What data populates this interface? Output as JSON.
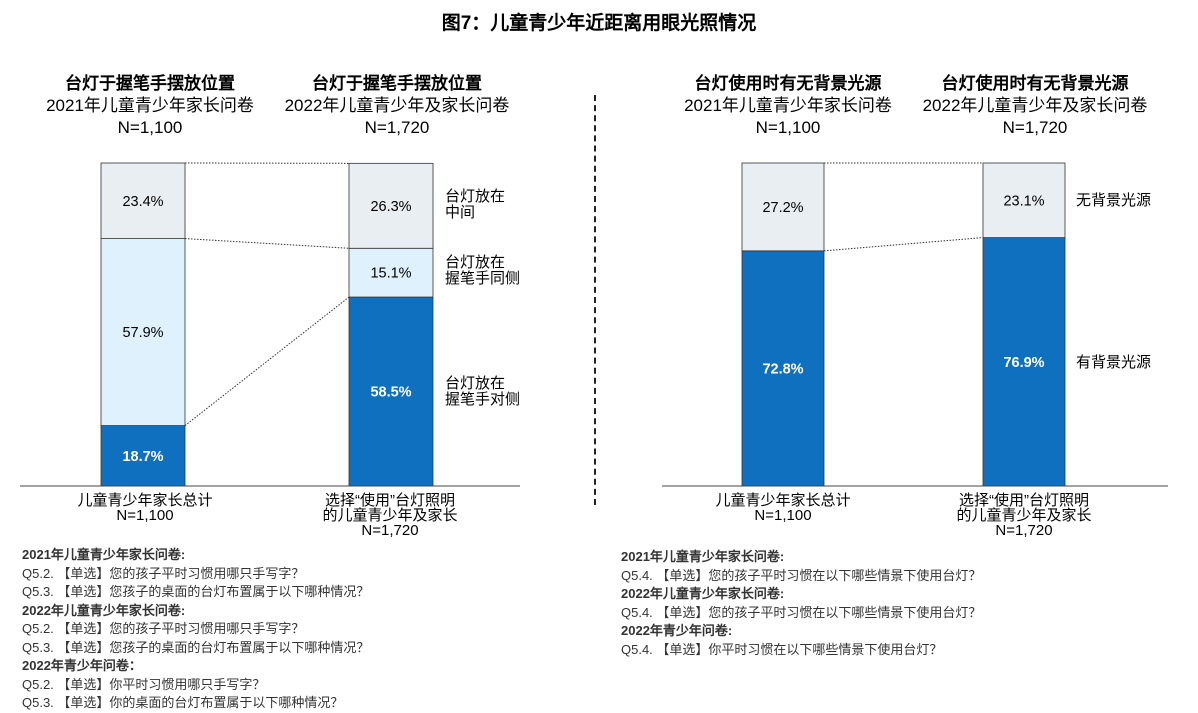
{
  "title": "图7：儿童青少年近距离用眼光照情况",
  "left_panel": {
    "headers": [
      {
        "title": "台灯于握笔手摆放位置",
        "survey": "2021年儿童青少年家长问卷",
        "n": "N=1,100"
      },
      {
        "title": "台灯于握笔手摆放位置",
        "survey": "2022年儿童青少年及家长问卷",
        "n": "N=1,720"
      }
    ],
    "xlabels": [
      {
        "line1": "儿童青少年家长总计",
        "line2": "N=1,100"
      },
      {
        "line1": "选择“使用”台灯照明",
        "line2": "的儿童青少年及家长",
        "line3": "N=1,720"
      }
    ],
    "legend": [
      {
        "line1": "台灯放在",
        "line2": "中间"
      },
      {
        "line1": "台灯放在",
        "line2": "握笔手同侧"
      },
      {
        "line1": "台灯放在",
        "line2": "握笔手对侧"
      }
    ],
    "notes": [
      {
        "bold": true,
        "text": "2021年儿童青少年家长问卷:"
      },
      {
        "bold": false,
        "text": "Q5.2. 【单选】您的孩子平时习惯用哪只手写字？"
      },
      {
        "bold": false,
        "text": "Q5.3. 【单选】您孩子的桌面的台灯布置属于以下哪种情况？"
      },
      {
        "bold": true,
        "text": "2022年儿童青少年家长问卷:"
      },
      {
        "bold": false,
        "text": "Q5.2. 【单选】您的孩子平时习惯用哪只手写字？"
      },
      {
        "bold": false,
        "text": "Q5.3. 【单选】您孩子的桌面的台灯布置属于以下哪种情况？"
      },
      {
        "bold": true,
        "text": "2022年青少年问卷："
      },
      {
        "bold": false,
        "text": "Q5.2. 【单选】你平时习惯用哪只手写字？"
      },
      {
        "bold": false,
        "text": "Q5.3. 【单选】你的桌面的台灯布置属于以下哪种情况？"
      }
    ]
  },
  "right_panel": {
    "headers": [
      {
        "title": "台灯使用时有无背景光源",
        "survey": "2021年儿童青少年家长问卷",
        "n": "N=1,100"
      },
      {
        "title": "台灯使用时有无背景光源",
        "survey": "2022年儿童青少年及家长问卷",
        "n": "N=1,720"
      }
    ],
    "xlabels": [
      {
        "line1": "儿童青少年家长总计",
        "line2": "N=1,100"
      },
      {
        "line1": "选择“使用”台灯照明",
        "line2": "的儿童青少年及家长",
        "line3": "N=1,720"
      }
    ],
    "legend": [
      {
        "line1": "无背景光源"
      },
      {
        "line1": "有背景光源"
      }
    ],
    "notes": [
      {
        "bold": true,
        "text": "2021年儿童青少年家长问卷:"
      },
      {
        "bold": false,
        "text": "Q5.4. 【单选】您的孩子平时习惯在以下哪些情景下使用台灯？"
      },
      {
        "bold": true,
        "text": "2022年儿童青少年家长问卷:"
      },
      {
        "bold": false,
        "text": "Q5.4. 【单选】您的孩子平时习惯在以下哪些情景下使用台灯？"
      },
      {
        "bold": true,
        "text": "2022年青少年问卷:"
      },
      {
        "bold": false,
        "text": "Q5.4. 【单选】你平时习惯在以下哪些情景下使用台灯？"
      }
    ]
  },
  "chart_data": [
    {
      "type": "bar",
      "stacked": true,
      "percent": true,
      "title": "台灯于握笔手摆放位置",
      "categories": [
        "儿童青少年家长总计 N=1,100",
        "选择“使用”台灯照明的儿童青少年及家长 N=1,720"
      ],
      "series": [
        {
          "name": "台灯放在握笔手对侧",
          "values": [
            18.7,
            58.5
          ],
          "color": "#1070c0",
          "label_color": "#ffffff"
        },
        {
          "name": "台灯放在握笔手同侧",
          "values": [
            57.9,
            15.1
          ],
          "color": "#dff1fc",
          "label_color": "#000000"
        },
        {
          "name": "台灯放在中间",
          "values": [
            23.4,
            26.3
          ],
          "color": "#e8eef2",
          "label_color": "#000000"
        }
      ],
      "ylim": [
        0,
        100
      ]
    },
    {
      "type": "bar",
      "stacked": true,
      "percent": true,
      "title": "台灯使用时有无背景光源",
      "categories": [
        "儿童青少年家长总计 N=1,100",
        "选择“使用”台灯照明的儿童青少年及家长 N=1,720"
      ],
      "series": [
        {
          "name": "有背景光源",
          "values": [
            72.8,
            76.9
          ],
          "color": "#1070c0",
          "label_color": "#ffffff"
        },
        {
          "name": "无背景光源",
          "values": [
            27.2,
            23.1
          ],
          "color": "#e8eef2",
          "label_color": "#000000"
        }
      ],
      "ylim": [
        0,
        100
      ]
    }
  ]
}
